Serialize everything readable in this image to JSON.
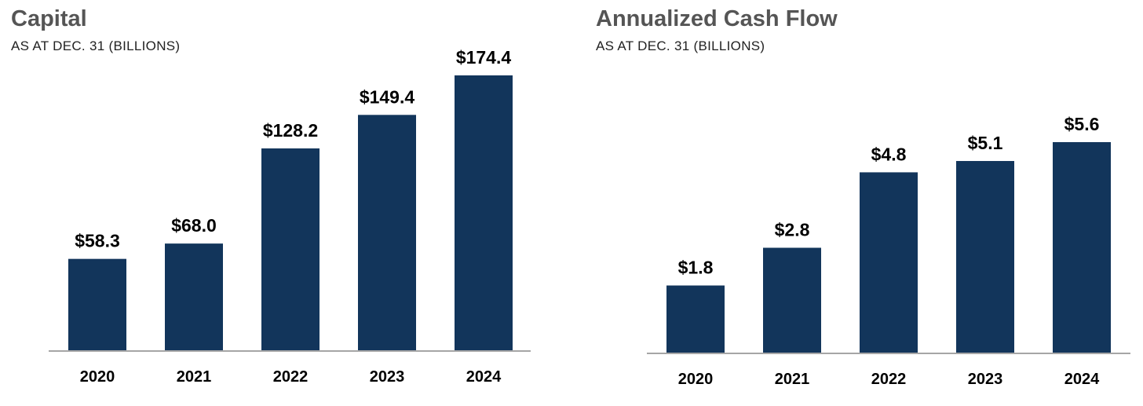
{
  "colors": {
    "bar": "#12355b",
    "axis": "#a6a6a6"
  },
  "chart_data": [
    {
      "type": "bar",
      "title": "Capital",
      "subtitle": "AS AT DEC. 31 (BILLIONS)",
      "categories": [
        "2020",
        "2021",
        "2022",
        "2023",
        "2024"
      ],
      "values": [
        58.3,
        68.0,
        128.2,
        149.4,
        174.4
      ],
      "value_labels": [
        "$58.3",
        "$68.0",
        "$128.2",
        "$149.4",
        "$174.4"
      ],
      "xlabel": "",
      "ylabel": "",
      "ylim": [
        0,
        174.4
      ],
      "grid": false,
      "legend": "none"
    },
    {
      "type": "bar",
      "title": "Annualized Cash Flow",
      "subtitle": "AS AT DEC. 31 (BILLIONS)",
      "categories": [
        "2020",
        "2021",
        "2022",
        "2023",
        "2024"
      ],
      "values": [
        1.8,
        2.8,
        4.8,
        5.1,
        5.6
      ],
      "value_labels": [
        "$1.8",
        "$2.8",
        "$4.8",
        "$5.1",
        "$5.6"
      ],
      "xlabel": "",
      "ylabel": "",
      "ylim": [
        0,
        5.6
      ],
      "grid": false,
      "legend": "none"
    }
  ]
}
